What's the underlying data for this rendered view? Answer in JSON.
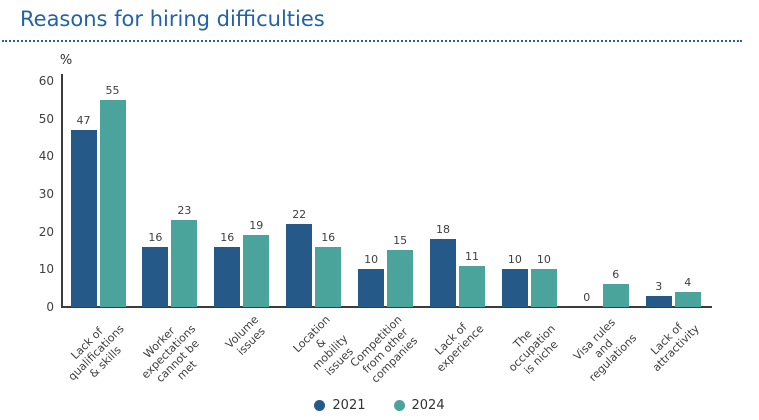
{
  "title": "Reasons for hiring difficulties",
  "colors": {
    "accent": "#2263A7",
    "axis": "#3c3c3c",
    "text": "#404040",
    "series_2021": "#255987",
    "series_2024": "#4BA49C"
  },
  "chart_data": {
    "type": "bar",
    "title": "Reasons for hiring difficulties",
    "unit_label": "%",
    "xlabel": "",
    "ylabel": "%",
    "ylim": [
      0,
      60
    ],
    "yticks": [
      0,
      10,
      20,
      30,
      40,
      50,
      60
    ],
    "grid": false,
    "legend_position": "bottom",
    "categories": [
      "Lack of\nqualifications\n& skills",
      "Worker expectations\ncannot be met",
      "Volume issues",
      "Location &\nmobility issues",
      "Competition\nfrom other\ncompanies",
      "Lack of\nexperience",
      "The occupation\nis niche",
      "Visa rules\nand regulations",
      "Lack of\nattractivity"
    ],
    "series": [
      {
        "name": "2021",
        "color": "#255987",
        "values": [
          47,
          16,
          16,
          22,
          10,
          18,
          10,
          0,
          3
        ]
      },
      {
        "name": "2024",
        "color": "#4BA49C",
        "values": [
          55,
          23,
          19,
          16,
          15,
          11,
          10,
          6,
          4
        ]
      }
    ]
  }
}
